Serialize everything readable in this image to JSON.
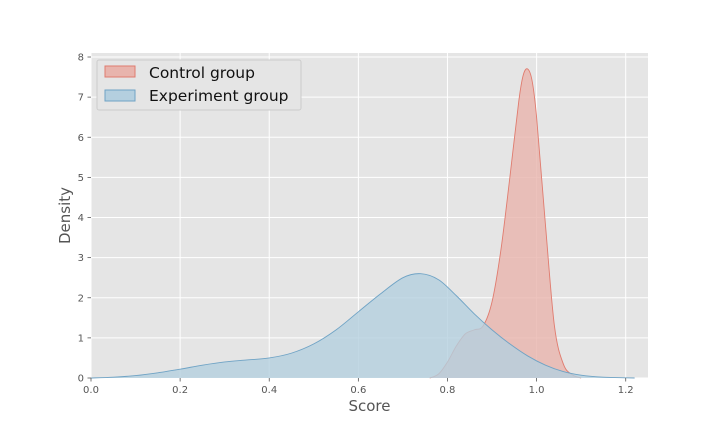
{
  "chart_data": {
    "type": "area",
    "title": "",
    "xlabel": "Score",
    "ylabel": "Density",
    "xlim": [
      0.0,
      1.25
    ],
    "ylim": [
      0,
      8.1
    ],
    "xticks": [
      "0.0",
      "0.2",
      "0.4",
      "0.6",
      "0.8",
      "1.0",
      "1.2"
    ],
    "yticks": [
      "0",
      "1",
      "2",
      "3",
      "4",
      "5",
      "6",
      "7",
      "8"
    ],
    "grid": true,
    "legend_position": "top-left",
    "series": [
      {
        "name": "Control group",
        "fill_color": "#e8b4ad",
        "line_color": "#e07b6e",
        "x": [
          0.76,
          0.78,
          0.8,
          0.82,
          0.84,
          0.86,
          0.88,
          0.9,
          0.92,
          0.94,
          0.96,
          0.97,
          0.98,
          0.99,
          1.0,
          1.02,
          1.04,
          1.06,
          1.08,
          1.1
        ],
        "y": [
          0.0,
          0.1,
          0.4,
          0.8,
          1.1,
          1.2,
          1.3,
          1.9,
          3.2,
          5.0,
          6.9,
          7.55,
          7.7,
          7.4,
          6.5,
          3.8,
          1.3,
          0.35,
          0.08,
          0.0
        ]
      },
      {
        "name": "Experiment group",
        "fill_color": "#b4cfdf",
        "line_color": "#6fa3c5",
        "x": [
          0.0,
          0.05,
          0.1,
          0.15,
          0.2,
          0.25,
          0.3,
          0.35,
          0.4,
          0.45,
          0.5,
          0.55,
          0.6,
          0.65,
          0.7,
          0.74,
          0.78,
          0.82,
          0.86,
          0.9,
          0.94,
          0.98,
          1.02,
          1.06,
          1.1,
          1.15,
          1.2,
          1.22
        ],
        "y": [
          0.0,
          0.02,
          0.06,
          0.13,
          0.22,
          0.32,
          0.4,
          0.45,
          0.5,
          0.62,
          0.85,
          1.2,
          1.65,
          2.1,
          2.5,
          2.6,
          2.45,
          2.05,
          1.6,
          1.2,
          0.85,
          0.55,
          0.32,
          0.16,
          0.07,
          0.02,
          0.005,
          0.0
        ]
      }
    ]
  }
}
